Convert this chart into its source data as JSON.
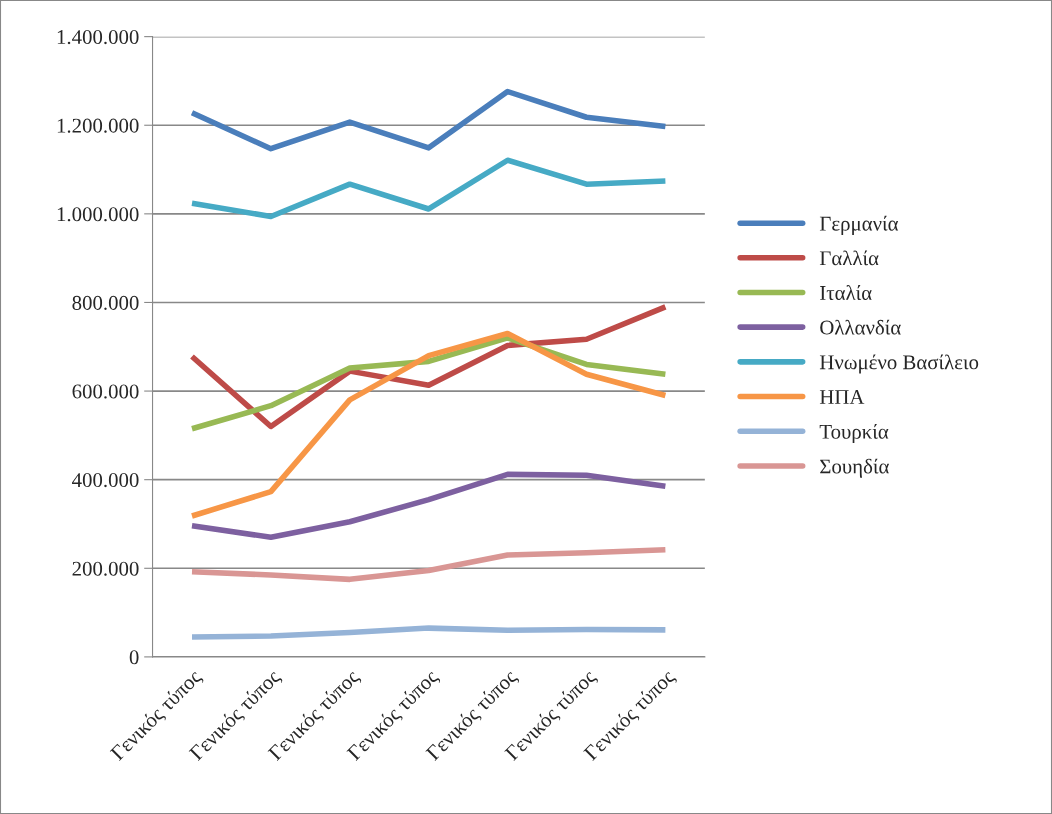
{
  "chart_data": {
    "type": "line",
    "categories": [
      "Γενικός τύπος",
      "Γενικός τύπος",
      "Γενικός τύπος",
      "Γενικός τύπος",
      "Γενικός τύπος",
      "Γενικός τύπος",
      "Γενικός τύπος"
    ],
    "series": [
      {
        "name": "Γερμανία",
        "color": "#4a7ebb",
        "values": [
          1228000,
          1147000,
          1207000,
          1149000,
          1276000,
          1218000,
          1197000
        ]
      },
      {
        "name": "Γαλλία",
        "color": "#be4b48",
        "values": [
          678000,
          520000,
          645000,
          613000,
          703000,
          717000,
          790000
        ]
      },
      {
        "name": "Ιταλία",
        "color": "#98b954",
        "values": [
          515000,
          567000,
          652000,
          667000,
          720000,
          660000,
          638000
        ]
      },
      {
        "name": "Ολλανδία",
        "color": "#7d60a0",
        "values": [
          296000,
          270000,
          305000,
          355000,
          412000,
          410000,
          385000
        ]
      },
      {
        "name": "Ηνωμένο Βασίλειο",
        "color": "#46aac5",
        "values": [
          1024000,
          994000,
          1067000,
          1011000,
          1121000,
          1067000,
          1074000
        ]
      },
      {
        "name": "ΗΠΑ",
        "color": "#f79646",
        "values": [
          318000,
          373000,
          580000,
          680000,
          730000,
          638000,
          590000
        ]
      },
      {
        "name": "Τουρκία",
        "color": "#95b3d7",
        "values": [
          45000,
          47000,
          55000,
          65000,
          60000,
          62000,
          61000
        ]
      },
      {
        "name": "Σουηδία",
        "color": "#d99694",
        "values": [
          192000,
          185000,
          175000,
          195000,
          230000,
          235000,
          242000
        ]
      }
    ],
    "ylim": [
      0,
      1400000
    ],
    "yticks": [
      0,
      {
        "value": 200000,
        "label": "200.000"
      },
      {
        "value": 400000,
        "label": "400.000"
      },
      {
        "value": 600000,
        "label": "600.000"
      },
      {
        "value": 800000,
        "label": "800.000"
      },
      {
        "value": 1000000,
        "label": "1.000.000"
      },
      {
        "value": 1200000,
        "label": "1.200.000"
      },
      {
        "value": 1400000,
        "label": "1.400.000"
      }
    ],
    "grid": "y",
    "legend": "right",
    "marker": "none",
    "line_style": "solid"
  }
}
